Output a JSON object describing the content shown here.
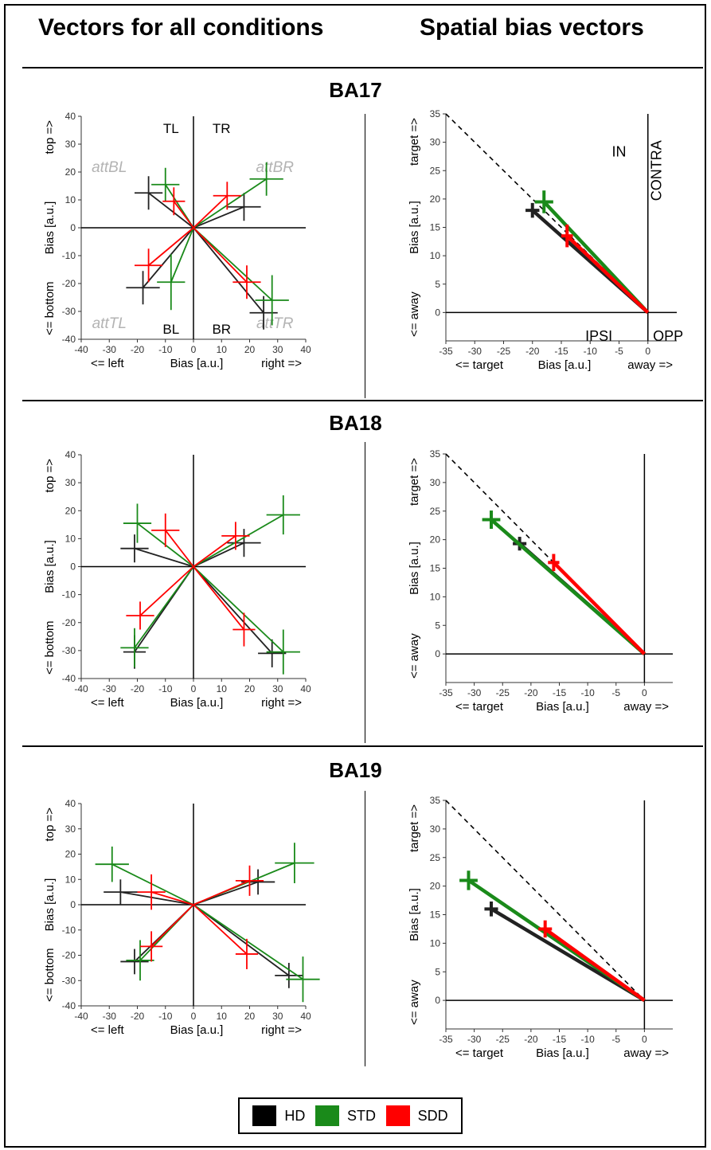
{
  "headers": {
    "left": "Vectors for all conditions",
    "right": "Spatial bias vectors"
  },
  "colors": {
    "HD": "#222222",
    "STD": "#1a8a1a",
    "SDD": "#ff0000",
    "quadrant": "#b3b3b3",
    "dashed": "#000000"
  },
  "legend": [
    {
      "label": "HD",
      "color": "#000000"
    },
    {
      "label": "STD",
      "color": "#1a8a1a"
    },
    {
      "label": "SDD",
      "color": "#ff0000"
    }
  ],
  "chart_data": [
    {
      "section": "BA17",
      "panel": "left",
      "type": "scatter",
      "xlim": [
        -40,
        40
      ],
      "ylim": [
        -40,
        40
      ],
      "xticks": [
        -40,
        -30,
        -20,
        -10,
        0,
        10,
        20,
        30,
        40
      ],
      "yticks": [
        -40,
        -30,
        -20,
        -10,
        0,
        10,
        20,
        30,
        40
      ],
      "xlabel_parts": [
        "<= left",
        "Bias [a.u.]",
        "right =>"
      ],
      "ylabel_parts": [
        "<= bottom",
        "Bias [a.u.]",
        "top =>"
      ],
      "quadrant_labels": [
        "TL",
        "TR",
        "BL",
        "BR"
      ],
      "attention_labels": [
        "attBL",
        "attBR",
        "attTL",
        "attTR"
      ],
      "series": [
        {
          "name": "HD",
          "points": [
            {
              "x": -16,
              "y": 12.5,
              "xerr": 5,
              "yerr": 6
            },
            {
              "x": 18,
              "y": 7.5,
              "xerr": 6,
              "yerr": 5
            },
            {
              "x": -18,
              "y": -21.5,
              "xerr": 6,
              "yerr": 6
            },
            {
              "x": 25,
              "y": -30.5,
              "xerr": 5,
              "yerr": 6
            }
          ]
        },
        {
          "name": "STD",
          "points": [
            {
              "x": -10,
              "y": 15.5,
              "xerr": 5,
              "yerr": 6
            },
            {
              "x": 26,
              "y": 17.5,
              "xerr": 6,
              "yerr": 6
            },
            {
              "x": -8,
              "y": -19.5,
              "xerr": 5,
              "yerr": 10
            },
            {
              "x": 28,
              "y": -26,
              "xerr": 6,
              "yerr": 9
            }
          ]
        },
        {
          "name": "SDD",
          "points": [
            {
              "x": -16,
              "y": -13.5,
              "xerr": 5,
              "yerr": 6
            },
            {
              "x": -7,
              "y": 9.5,
              "xerr": 4,
              "yerr": 5
            },
            {
              "x": 12,
              "y": 11.5,
              "xerr": 5,
              "yerr": 5
            },
            {
              "x": 19,
              "y": -19.5,
              "xerr": 5,
              "yerr": 6
            }
          ]
        }
      ]
    },
    {
      "section": "BA17",
      "panel": "right",
      "type": "line",
      "xlim": [
        -35,
        5
      ],
      "ylim": [
        -5,
        35
      ],
      "xticks": [
        -35,
        -30,
        -25,
        -20,
        -15,
        -10,
        -5,
        0
      ],
      "yticks": [
        0,
        5,
        10,
        15,
        20,
        25,
        30,
        35
      ],
      "xlabel_parts": [
        "<= target",
        "Bias [a.u.]",
        "away =>"
      ],
      "ylabel_parts": [
        "<= away",
        "Bias [a.u.]",
        "target =>"
      ],
      "region_labels": [
        "IN",
        "CONTRA",
        "IPSI",
        "OPP"
      ],
      "series": [
        {
          "name": "HD",
          "x": -20,
          "y": 18,
          "xerr": 1.2,
          "yerr": 1.3
        },
        {
          "name": "STD",
          "x": -18,
          "y": 19.5,
          "xerr": 1.6,
          "yerr": 2
        },
        {
          "name": "SDD",
          "x": -14,
          "y": 13.5,
          "xerr": 1,
          "yerr": 2
        }
      ]
    },
    {
      "section": "BA18",
      "panel": "left",
      "type": "scatter",
      "xlim": [
        -40,
        40
      ],
      "ylim": [
        -40,
        40
      ],
      "xticks": [
        -40,
        -30,
        -20,
        -10,
        0,
        10,
        20,
        30,
        40
      ],
      "yticks": [
        -40,
        -30,
        -20,
        -10,
        0,
        10,
        20,
        30,
        40
      ],
      "xlabel_parts": [
        "<= left",
        "Bias [a.u.]",
        "right =>"
      ],
      "ylabel_parts": [
        "<= bottom",
        "Bias [a.u.]",
        "top =>"
      ],
      "series": [
        {
          "name": "HD",
          "points": [
            {
              "x": -21,
              "y": 6.5,
              "xerr": 5,
              "yerr": 5
            },
            {
              "x": 18,
              "y": 8.5,
              "xerr": 6,
              "yerr": 5
            },
            {
              "x": -21,
              "y": -30.5,
              "xerr": 4,
              "yerr": 6
            },
            {
              "x": 28,
              "y": -31,
              "xerr": 5,
              "yerr": 5
            }
          ]
        },
        {
          "name": "STD",
          "points": [
            {
              "x": -20,
              "y": 15.5,
              "xerr": 5,
              "yerr": 7
            },
            {
              "x": 32,
              "y": 18.5,
              "xerr": 6,
              "yerr": 7
            },
            {
              "x": -21,
              "y": -29,
              "xerr": 5,
              "yerr": 7
            },
            {
              "x": 32,
              "y": -30.5,
              "xerr": 6,
              "yerr": 8
            }
          ]
        },
        {
          "name": "SDD",
          "points": [
            {
              "x": -10,
              "y": 13,
              "xerr": 5,
              "yerr": 6
            },
            {
              "x": 15,
              "y": 11,
              "xerr": 5,
              "yerr": 5
            },
            {
              "x": -19,
              "y": -17.5,
              "xerr": 5,
              "yerr": 5
            },
            {
              "x": 18,
              "y": -22.5,
              "xerr": 4,
              "yerr": 6
            }
          ]
        }
      ]
    },
    {
      "section": "BA18",
      "panel": "right",
      "type": "line",
      "xlim": [
        -35,
        5
      ],
      "ylim": [
        -5,
        35
      ],
      "xticks": [
        -35,
        -30,
        -25,
        -20,
        -15,
        -10,
        -5,
        0
      ],
      "yticks": [
        0,
        5,
        10,
        15,
        20,
        25,
        30,
        35
      ],
      "xlabel_parts": [
        "<= target",
        "Bias [a.u.]",
        "away =>"
      ],
      "ylabel_parts": [
        "<= away",
        "Bias [a.u.]",
        "target =>"
      ],
      "series": [
        {
          "name": "HD",
          "x": -22,
          "y": 19.3,
          "xerr": 1.2,
          "yerr": 1.2
        },
        {
          "name": "STD",
          "x": -27,
          "y": 23.5,
          "xerr": 1.6,
          "yerr": 1.6
        },
        {
          "name": "SDD",
          "x": -16,
          "y": 16,
          "xerr": 1,
          "yerr": 1.5
        }
      ]
    },
    {
      "section": "BA19",
      "panel": "left",
      "type": "scatter",
      "xlim": [
        -40,
        40
      ],
      "ylim": [
        -40,
        40
      ],
      "xticks": [
        -40,
        -30,
        -20,
        -10,
        0,
        10,
        20,
        30,
        40
      ],
      "yticks": [
        -40,
        -30,
        -20,
        -10,
        0,
        10,
        20,
        30,
        40
      ],
      "xlabel_parts": [
        "<= left",
        "Bias [a.u.]",
        "right =>"
      ],
      "ylabel_parts": [
        "<= bottom",
        "Bias [a.u.]",
        "top =>"
      ],
      "series": [
        {
          "name": "HD",
          "points": [
            {
              "x": -26,
              "y": 5,
              "xerr": 6,
              "yerr": 5
            },
            {
              "x": 23,
              "y": 9,
              "xerr": 6,
              "yerr": 5
            },
            {
              "x": -21,
              "y": -22.5,
              "xerr": 5,
              "yerr": 5
            },
            {
              "x": 34,
              "y": -28,
              "xerr": 5,
              "yerr": 5
            }
          ]
        },
        {
          "name": "STD",
          "points": [
            {
              "x": -29,
              "y": 16,
              "xerr": 6,
              "yerr": 7
            },
            {
              "x": 36,
              "y": 16.5,
              "xerr": 7,
              "yerr": 8
            },
            {
              "x": -19,
              "y": -22,
              "xerr": 5,
              "yerr": 8
            },
            {
              "x": 39,
              "y": -29.5,
              "xerr": 6,
              "yerr": 9
            }
          ]
        },
        {
          "name": "SDD",
          "points": [
            {
              "x": -15,
              "y": 5,
              "xerr": 5,
              "yerr": 7
            },
            {
              "x": 20,
              "y": 9.5,
              "xerr": 5,
              "yerr": 6
            },
            {
              "x": -15,
              "y": -16.5,
              "xerr": 4,
              "yerr": 6
            },
            {
              "x": 19,
              "y": -19.5,
              "xerr": 4,
              "yerr": 6
            }
          ]
        }
      ]
    },
    {
      "section": "BA19",
      "panel": "right",
      "type": "line",
      "xlim": [
        -35,
        5
      ],
      "ylim": [
        -5,
        35
      ],
      "xticks": [
        -35,
        -30,
        -25,
        -20,
        -15,
        -10,
        -5,
        0
      ],
      "yticks": [
        0,
        5,
        10,
        15,
        20,
        25,
        30,
        35
      ],
      "xlabel_parts": [
        "<= target",
        "Bias [a.u.]",
        "away =>"
      ],
      "ylabel_parts": [
        "<= away",
        "Bias [a.u.]",
        "target =>"
      ],
      "series": [
        {
          "name": "HD",
          "x": -27,
          "y": 16,
          "xerr": 1.2,
          "yerr": 1.3
        },
        {
          "name": "STD",
          "x": -31,
          "y": 21,
          "xerr": 1.6,
          "yerr": 1.7
        },
        {
          "name": "SDD",
          "x": -17.5,
          "y": 12.5,
          "xerr": 1.2,
          "yerr": 1.5
        }
      ]
    }
  ]
}
